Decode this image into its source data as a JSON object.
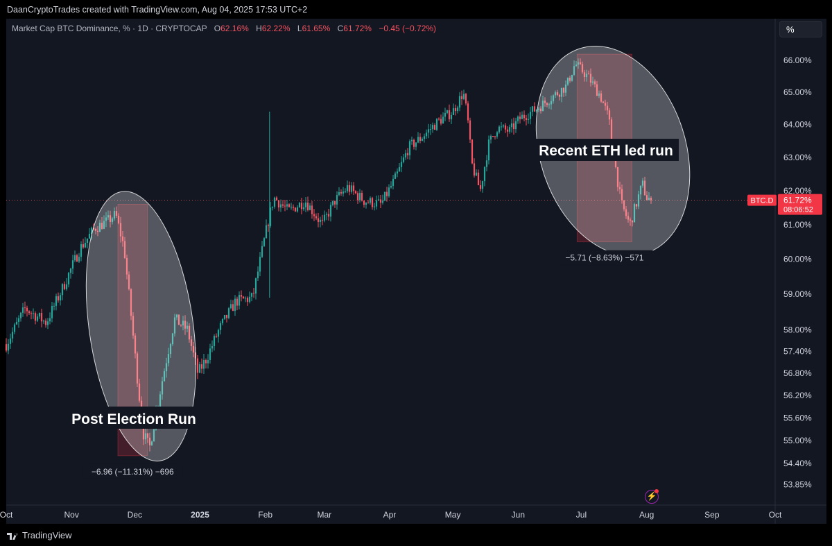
{
  "header": {
    "credit": "DaanCryptoTrades created with TradingView.com, Aug 04, 2025 17:53 UTC+2"
  },
  "legend": {
    "symbol": "Market Cap BTC Dominance, % · 1D · CRYPTOCAP",
    "open_label": "O",
    "open": "62.16%",
    "high_label": "H",
    "high": "62.22%",
    "low_label": "L",
    "low": "61.65%",
    "close_label": "C",
    "close": "61.72%",
    "change": "−0.45 (−0.72%)"
  },
  "scale_button": "%",
  "price_tag": {
    "symbol": "BTC.D",
    "price": "61.72%",
    "countdown": "08:06:52"
  },
  "footer": {
    "brand": "TradingView"
  },
  "annotations": {
    "left_label": "Post Election Run",
    "right_label": "Recent ETH led run",
    "left_measure": "−6.96 (−11.31%) −696",
    "right_measure": "−5.71 (−8.63%) −571"
  },
  "colors": {
    "up": "#26a69a",
    "down": "#f7525f",
    "background": "#131722",
    "accent": "#f23645"
  },
  "icons": {
    "live": "lightning-icon",
    "logo": "tradingview-logo-icon"
  },
  "chart_data": {
    "type": "candlestick",
    "title": "Market Cap BTC Dominance, % · 1D · CRYPTOCAP",
    "y_scale": "log",
    "ylim": [
      53.5,
      66.6
    ],
    "y_ticks": [
      "66.00%",
      "65.00%",
      "64.00%",
      "63.00%",
      "62.00%",
      "61.00%",
      "60.00%",
      "59.00%",
      "58.00%",
      "57.40%",
      "56.80%",
      "56.20%",
      "55.60%",
      "55.00%",
      "54.40%",
      "53.85%"
    ],
    "x_ticks": [
      "Oct",
      "Nov",
      "Dec",
      "2025",
      "Feb",
      "Mar",
      "Apr",
      "May",
      "Jun",
      "Jul",
      "Aug",
      "Sep",
      "Oct"
    ],
    "x_range": [
      "2024-10-01",
      "2025-10-01"
    ],
    "last_value": 61.72,
    "path_points": [
      [
        "2024-10-01",
        57.6
      ],
      [
        "2024-10-10",
        58.6
      ],
      [
        "2024-10-20",
        58.2
      ],
      [
        "2024-10-28",
        59.2
      ],
      [
        "2024-11-05",
        60.3
      ],
      [
        "2024-11-12",
        60.9
      ],
      [
        "2024-11-18",
        61.1
      ],
      [
        "2024-11-22",
        61.3
      ],
      [
        "2024-11-26",
        60.3
      ],
      [
        "2024-12-02",
        56.8
      ],
      [
        "2024-12-05",
        55.2
      ],
      [
        "2024-12-08",
        54.8
      ],
      [
        "2024-12-14",
        56.6
      ],
      [
        "2024-12-20",
        58.3
      ],
      [
        "2024-12-26",
        58.0
      ],
      [
        "2024-12-31",
        56.8
      ],
      [
        "2025-01-04",
        57.2
      ],
      [
        "2025-01-10",
        58.0
      ],
      [
        "2025-01-18",
        58.8
      ],
      [
        "2025-01-26",
        58.9
      ],
      [
        "2025-02-02",
        61.0
      ],
      [
        "2025-02-05",
        61.8
      ],
      [
        "2025-02-12",
        61.4
      ],
      [
        "2025-02-20",
        61.7
      ],
      [
        "2025-02-28",
        61.0
      ],
      [
        "2025-03-06",
        61.7
      ],
      [
        "2025-03-12",
        62.1
      ],
      [
        "2025-03-20",
        61.7
      ],
      [
        "2025-03-28",
        61.6
      ],
      [
        "2025-04-04",
        62.4
      ],
      [
        "2025-04-10",
        63.3
      ],
      [
        "2025-04-16",
        63.6
      ],
      [
        "2025-04-24",
        64.1
      ],
      [
        "2025-05-01",
        64.4
      ],
      [
        "2025-05-06",
        65.0
      ],
      [
        "2025-05-08",
        64.2
      ],
      [
        "2025-05-10",
        62.8
      ],
      [
        "2025-05-14",
        62.0
      ],
      [
        "2025-05-18",
        63.4
      ],
      [
        "2025-05-22",
        63.9
      ],
      [
        "2025-05-28",
        63.8
      ],
      [
        "2025-06-02",
        64.2
      ],
      [
        "2025-06-10",
        64.5
      ],
      [
        "2025-06-18",
        64.9
      ],
      [
        "2025-06-24",
        65.2
      ],
      [
        "2025-06-28",
        65.9
      ],
      [
        "2025-07-04",
        65.5
      ],
      [
        "2025-07-10",
        64.9
      ],
      [
        "2025-07-14",
        64.2
      ],
      [
        "2025-07-17",
        62.8
      ],
      [
        "2025-07-20",
        61.6
      ],
      [
        "2025-07-24",
        61.0
      ],
      [
        "2025-07-26",
        61.4
      ],
      [
        "2025-07-30",
        62.2
      ],
      [
        "2025-08-01",
        61.8
      ],
      [
        "2025-08-04",
        61.72
      ]
    ],
    "measures": [
      {
        "label": "−6.96 (−11.31%) −696",
        "from": [
          "2024-11-23",
          61.6
        ],
        "to": [
          "2024-12-07",
          54.6
        ]
      },
      {
        "label": "−5.71 (−8.63%) −571",
        "from": [
          "2025-06-29",
          66.2
        ],
        "to": [
          "2025-07-25",
          60.5
        ]
      }
    ]
  }
}
